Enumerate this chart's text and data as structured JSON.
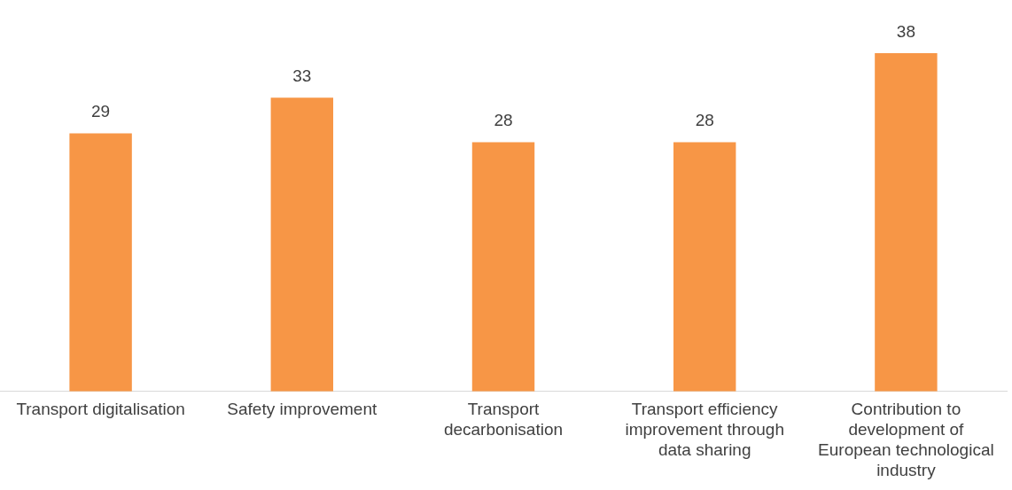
{
  "chart_data": {
    "type": "bar",
    "categories": [
      "Transport digitalisation",
      "Safety improvement",
      "Transport decarbonisation",
      "Transport efficiency improvement through data sharing",
      "Contribution to development of European technological industry"
    ],
    "values": [
      29,
      33,
      28,
      28,
      38
    ],
    "color": "#f79646",
    "data_labels": true,
    "grid": false,
    "legend": false
  }
}
